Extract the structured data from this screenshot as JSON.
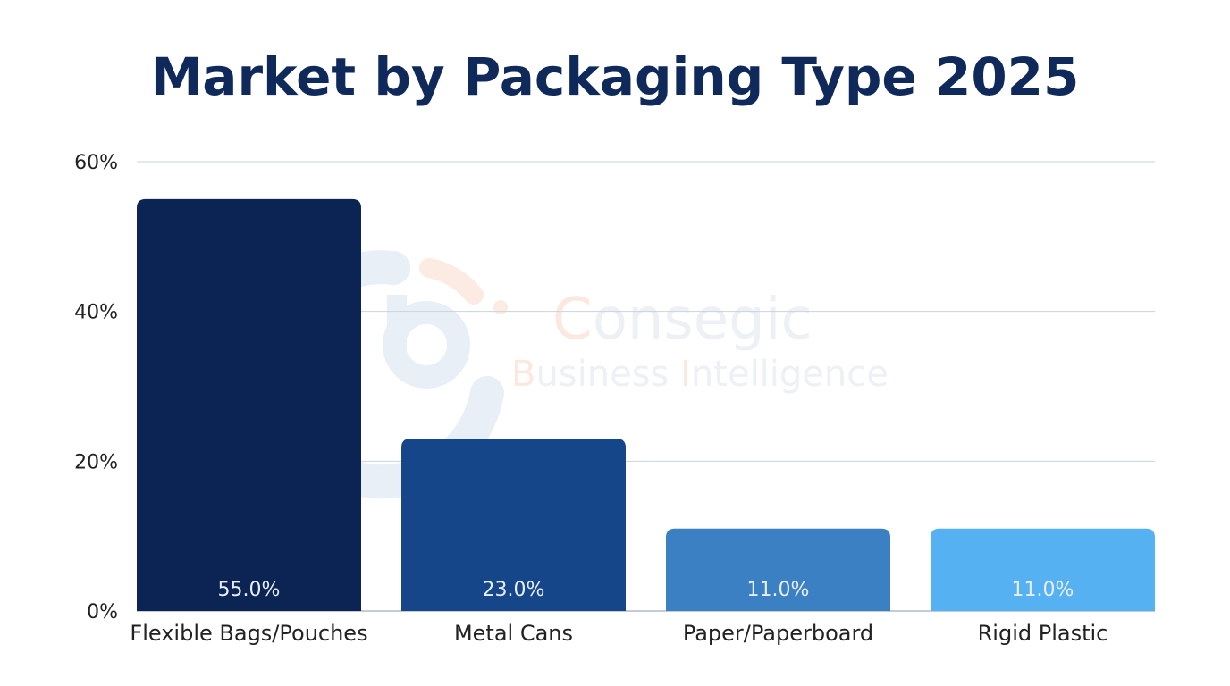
{
  "chart_data": {
    "type": "bar",
    "title": "Market by Packaging Type 2025",
    "categories": [
      "Flexible Bags/Pouches",
      "Metal Cans",
      "Paper/Paperboard",
      "Rigid Plastic"
    ],
    "values": [
      55.0,
      23.0,
      11.0,
      11.0
    ],
    "data_labels": [
      "55.0%",
      "23.0%",
      "11.0%",
      "11.0%"
    ],
    "colors": [
      "#0b2454",
      "#15468a",
      "#3a80c2",
      "#55b1f2"
    ],
    "xlabel": "",
    "ylabel": "",
    "ylim": [
      0,
      60
    ],
    "yticks": [
      0,
      20,
      40,
      60
    ],
    "ytick_labels": [
      "0%",
      "20%",
      "40%",
      "60%"
    ],
    "grid": true,
    "legend": "none"
  },
  "watermark": {
    "brand": "Consegic",
    "tagline": "Business Intelligence"
  }
}
